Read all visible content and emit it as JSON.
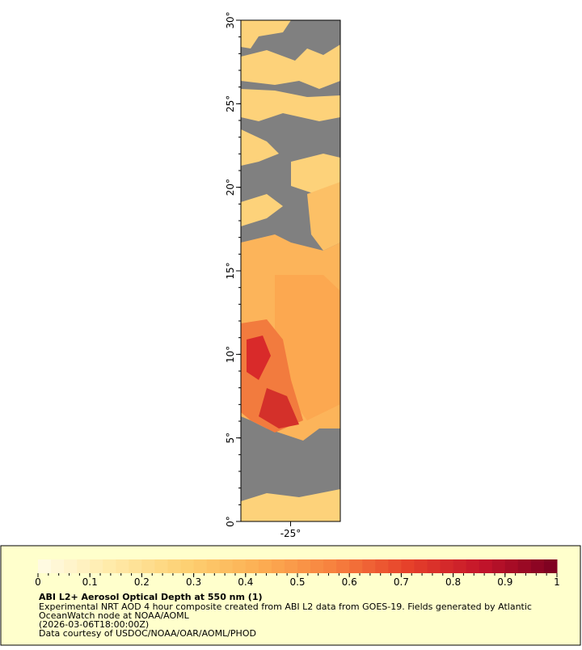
{
  "map": {
    "lat_range": [
      0,
      30
    ],
    "lon_range": [
      -26.5,
      -23.5
    ],
    "lat_ticks": [
      {
        "value": 0,
        "label": "0°"
      },
      {
        "value": 5,
        "label": "5°"
      },
      {
        "value": 10,
        "label": "10°"
      },
      {
        "value": 15,
        "label": "15°"
      },
      {
        "value": 20,
        "label": "20°"
      },
      {
        "value": 25,
        "label": "25°"
      },
      {
        "value": 30,
        "label": "30°"
      }
    ],
    "lon_ticks": [
      {
        "value": -25,
        "label": "-25°"
      }
    ]
  },
  "colorbar": {
    "title": "ABI L2+ Aerosol Optical Depth at 550 nm (1)",
    "range": [
      0,
      1
    ],
    "ticks": [
      0,
      0.1,
      0.2,
      0.3,
      0.4,
      0.5,
      0.6,
      0.7,
      0.8,
      0.9,
      1
    ],
    "colors": [
      "#fffbe6",
      "#ffeaa8",
      "#fdd072",
      "#fcae52",
      "#f7803e",
      "#e6402a",
      "#c3142a",
      "#7a0020"
    ]
  },
  "caption": [
    "Experimental NRT AOD 4 hour composite created from ABI L2 data from GOES-19. Fields generated by Atlantic",
    "OceanWatch node at NOAA/AOML",
    "(2026-03-06T18:00:00Z)",
    "Data courtesy of USDOC/NOAA/OAR/AOML/PHOD"
  ]
}
